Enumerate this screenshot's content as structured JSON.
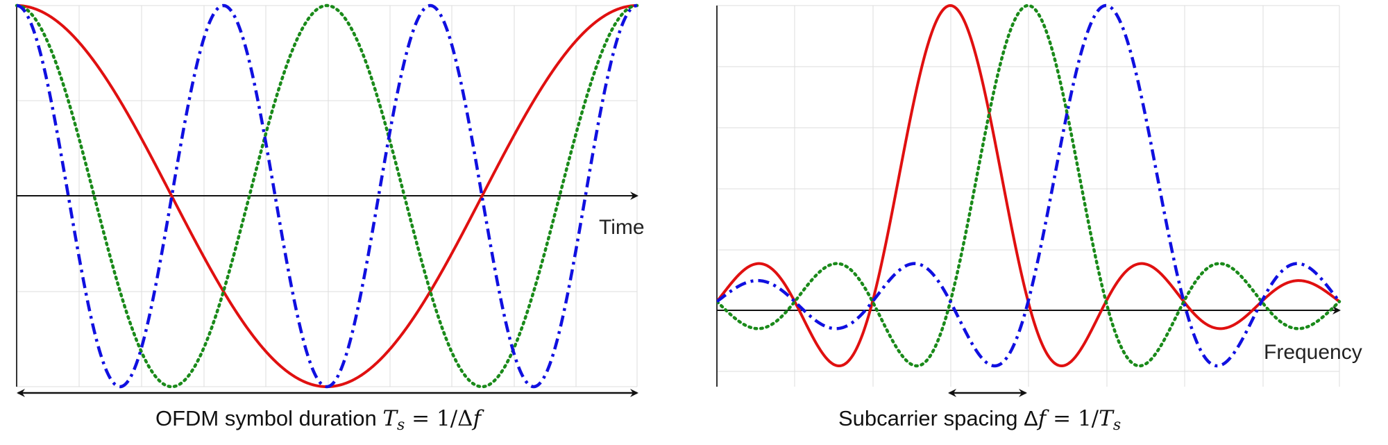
{
  "chart_data": [
    {
      "type": "line",
      "title": "",
      "xlabel": "Time",
      "ylabel": "",
      "xlim": [
        0,
        1
      ],
      "ylim": [
        -1,
        1
      ],
      "grid": true,
      "caption": {
        "text": "OFDM symbol duration ",
        "symbol": "T",
        "subscript": "s",
        "equals": " = 1/Δ",
        "tail": "f"
      },
      "series": [
        {
          "color": "#e01010",
          "style": "solid",
          "function": "cos(2*pi*1*t)"
        },
        {
          "color": "#1a8a1a",
          "style": "dotted",
          "function": "cos(2*pi*2*t)"
        },
        {
          "color": "#1010e0",
          "style": "dashdot",
          "function": "cos(2*pi*3*t)"
        }
      ]
    },
    {
      "type": "line",
      "title": "",
      "xlabel": "Frequency",
      "ylabel": "",
      "xlim": [
        -3,
        5
      ],
      "ylim": [
        -0.25,
        1
      ],
      "grid": true,
      "caption": {
        "text": "Subcarrier spacing Δ",
        "symbol": "f",
        "equals": " = 1/",
        "tail": "T",
        "subscript": "s"
      },
      "series": [
        {
          "color": "#e01010",
          "style": "solid",
          "function": "sinc(f-0)"
        },
        {
          "color": "#1a8a1a",
          "style": "dotted",
          "function": "sinc(f-1)"
        },
        {
          "color": "#1010e0",
          "style": "dashdot",
          "function": "sinc(f-2)"
        }
      ]
    }
  ]
}
